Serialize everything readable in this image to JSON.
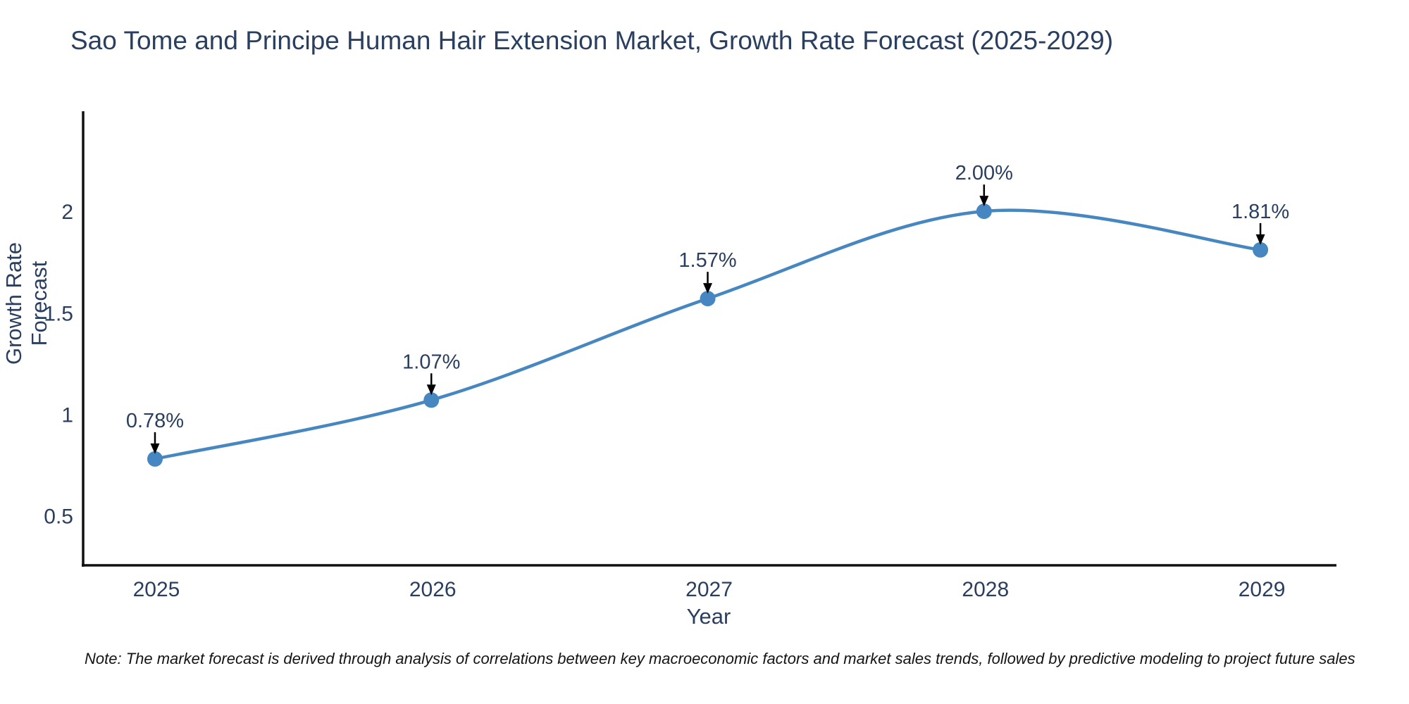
{
  "title": "Sao Tome and Principe Human Hair Extension Market, Growth Rate Forecast (2025-2029)",
  "note": "Note: The market forecast is derived through analysis of correlations between key macroeconomic factors and market sales trends, followed by predictive modeling to project future sales",
  "colors": {
    "line": "#4787c1",
    "marker": "#4787c1",
    "text": "#2a3f5f",
    "axis": "#101010",
    "arrow": "#000000"
  },
  "chart_data": {
    "type": "line",
    "curve": "spline",
    "title": "Sao Tome and Principe Human Hair Extension Market, Growth Rate Forecast (2025-2029)",
    "xlabel": "Year",
    "ylabel": "Growth Rate Forecast",
    "x": [
      2025,
      2026,
      2027,
      2028,
      2029
    ],
    "series": [
      {
        "name": "Growth Rate Forecast",
        "values": [
          0.78,
          1.07,
          1.57,
          2.0,
          1.81
        ]
      }
    ],
    "point_labels": [
      "0.78%",
      "1.07%",
      "1.57%",
      "2.00%",
      "1.81%"
    ],
    "xtick_labels": [
      "2025",
      "2026",
      "2027",
      "2028",
      "2029"
    ],
    "ytick_values": [
      0.5,
      1,
      1.5,
      2
    ],
    "ytick_labels": [
      "0.5",
      "1",
      "1.5",
      "2"
    ],
    "xlim": [
      2024.74,
      2029.27
    ],
    "ylim": [
      0.256,
      2.486
    ],
    "grid": false,
    "legend": "none"
  }
}
